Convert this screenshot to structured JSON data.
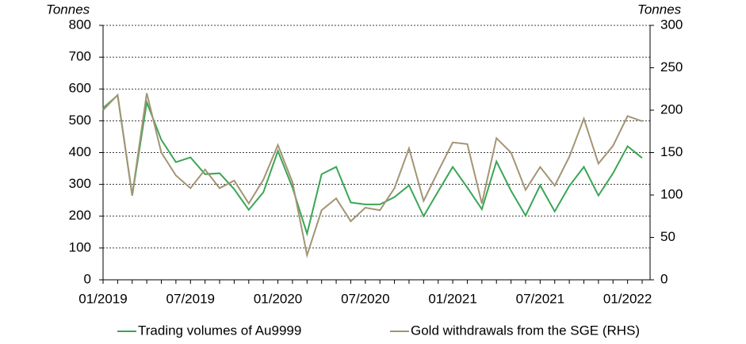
{
  "chart_data": {
    "type": "line",
    "y_label": "Tonnes",
    "y2_label": "Tonnes",
    "categories": [
      "01/2019",
      null,
      null,
      null,
      null,
      null,
      "07/2019",
      null,
      null,
      null,
      null,
      null,
      "01/2020",
      null,
      null,
      null,
      null,
      null,
      "07/2020",
      null,
      null,
      null,
      null,
      null,
      "01/2021",
      null,
      null,
      null,
      null,
      null,
      "07/2021",
      null,
      null,
      null,
      null,
      null,
      "01/2022",
      null
    ],
    "series": [
      {
        "name": "Trading volumes of Au9999",
        "color": "#3aa655",
        "values": [
          540,
          580,
          265,
          558,
          440,
          370,
          385,
          332,
          335,
          285,
          220,
          275,
          405,
          290,
          145,
          332,
          355,
          243,
          237,
          237,
          260,
          297,
          200,
          278,
          355,
          290,
          222,
          372,
          280,
          202,
          297,
          215,
          295,
          355,
          265,
          335,
          420,
          383
        ]
      },
      {
        "name": "Gold withdrawals from the SGE (RHS)",
        "color": "#a39474",
        "axis": "y2",
        "values": [
          200,
          218,
          100,
          220,
          150,
          123,
          108,
          130,
          108,
          117,
          90,
          118,
          159,
          115,
          29,
          82,
          96,
          69,
          85,
          82,
          108,
          155,
          93,
          128,
          162,
          160,
          90,
          167,
          150,
          106,
          133,
          111,
          145,
          190,
          137,
          158,
          193,
          187
        ]
      }
    ],
    "ylim": [
      0,
      800
    ],
    "yticks": [
      0,
      100,
      200,
      300,
      400,
      500,
      600,
      700,
      800
    ],
    "y2lim": [
      0,
      300
    ],
    "y2ticks": [
      0,
      50,
      100,
      150,
      200,
      250,
      300
    ],
    "grid": true,
    "legend": "bottom"
  }
}
